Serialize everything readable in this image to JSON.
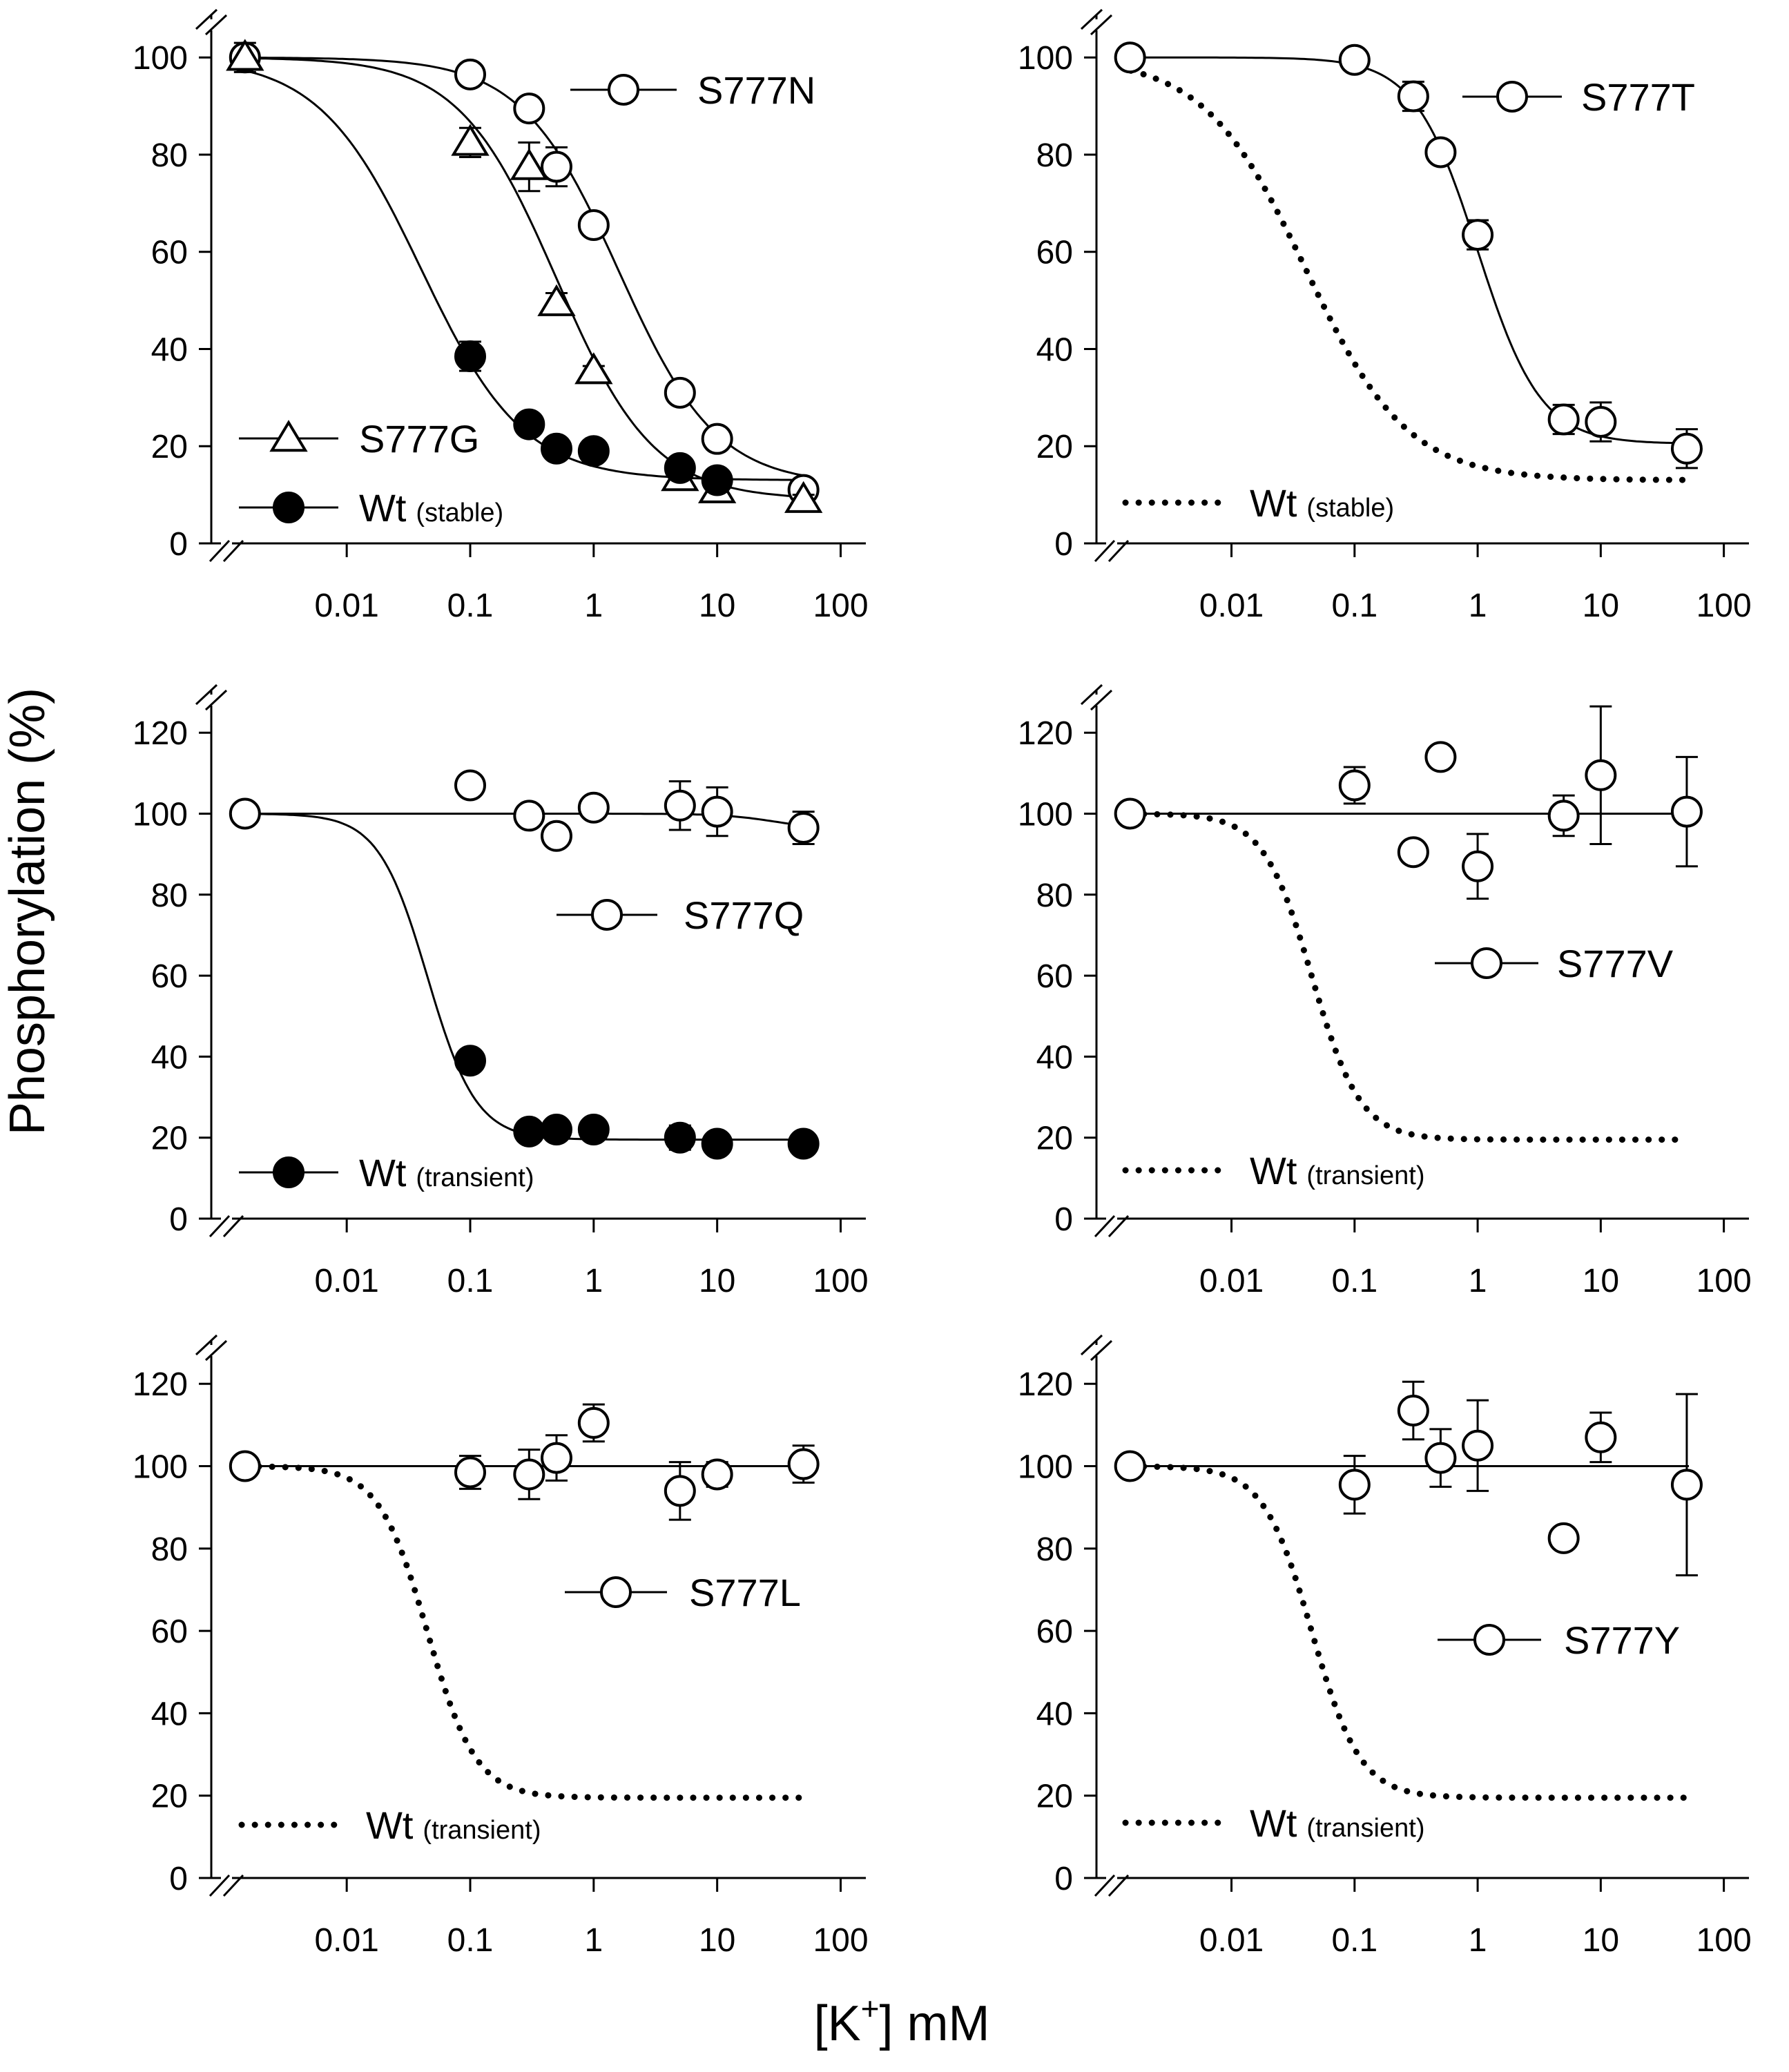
{
  "figure": {
    "ylabel": "Phosphorylation (%)",
    "xlabel_prefix": "[K",
    "xlabel_sup": "+",
    "xlabel_suffix": "] mM"
  },
  "colors": {
    "line": "#000000",
    "open_marker_fill": "#ffffff",
    "filled_marker": "#000000",
    "background": "#ffffff"
  },
  "chart_data": [
    {
      "type": "scatter",
      "panel": "top-left",
      "x_scale": "log",
      "x_ticks": [
        "0.01",
        "0.1",
        "1",
        "10",
        "100"
      ],
      "x_tick_values": [
        0.01,
        0.1,
        1,
        10,
        100
      ],
      "xlim": [
        0.0008,
        160
      ],
      "ylim": [
        0,
        100
      ],
      "y_ticks": [
        "0",
        "20",
        "40",
        "60",
        "80",
        "100"
      ],
      "y_tick_values": [
        0,
        20,
        40,
        60,
        80,
        100
      ],
      "series": [
        {
          "name": "S777N",
          "marker": "open-circle",
          "x": [
            0.0015,
            0.1,
            0.3,
            0.5,
            1,
            5,
            10,
            50
          ],
          "y": [
            100,
            96.5,
            89.5,
            77.5,
            65.5,
            31,
            21.5,
            11
          ],
          "err": [
            2,
            1,
            2,
            4,
            2,
            2,
            2,
            2
          ],
          "fit": {
            "kind": "sigmoid",
            "top": 100,
            "bottom": 12,
            "ec50": 1.6,
            "n": 1.1
          }
        },
        {
          "name": "S777G",
          "marker": "open-triangle",
          "x": [
            0.0015,
            0.1,
            0.3,
            0.5,
            1,
            5,
            10,
            50
          ],
          "y": [
            100,
            82.5,
            77.5,
            49.5,
            35.5,
            13.5,
            11,
            9
          ],
          "err": [
            3,
            3,
            5,
            2,
            1,
            1,
            1,
            1
          ],
          "fit": {
            "kind": "sigmoid",
            "top": 100,
            "bottom": 9,
            "ec50": 0.5,
            "n": 1.1
          }
        },
        {
          "name": "Wt",
          "qualifier": "(stable)",
          "marker": "filled-circle",
          "x": [
            0.1,
            0.3,
            0.5,
            1,
            5,
            10
          ],
          "y": [
            38.5,
            24.5,
            19.5,
            19,
            15.5,
            13
          ],
          "err": [
            3,
            2,
            2,
            2,
            2,
            1
          ],
          "fit": {
            "kind": "sigmoid",
            "top": 100,
            "bottom": 13,
            "ec50": 0.04,
            "n": 1.05
          }
        }
      ],
      "legend": [
        {
          "label": "S777N",
          "qualifier": "",
          "symbol": "open-circle"
        },
        {
          "label": "S777G",
          "qualifier": "",
          "symbol": "open-triangle"
        },
        {
          "label": "Wt",
          "qualifier": "(stable)",
          "symbol": "filled-circle"
        }
      ]
    },
    {
      "type": "scatter",
      "panel": "top-right",
      "x_scale": "log",
      "x_ticks": [
        "0.01",
        "0.1",
        "1",
        "10",
        "100"
      ],
      "x_tick_values": [
        0.01,
        0.1,
        1,
        10,
        100
      ],
      "xlim": [
        0.0008,
        160
      ],
      "ylim": [
        0,
        100
      ],
      "y_ticks": [
        "0",
        "20",
        "40",
        "60",
        "80",
        "100"
      ],
      "y_tick_values": [
        0,
        20,
        40,
        60,
        80,
        100
      ],
      "series": [
        {
          "name": "S777T",
          "marker": "open-circle",
          "x": [
            0.0015,
            0.1,
            0.3,
            0.5,
            1,
            5,
            10,
            50
          ],
          "y": [
            100,
            99.5,
            92,
            80.5,
            63.5,
            25.5,
            25,
            19.5
          ],
          "err": [
            2,
            1,
            3,
            2,
            3,
            3,
            4,
            4
          ],
          "fit": {
            "kind": "sigmoid",
            "top": 100,
            "bottom": 20.5,
            "ec50": 1.0,
            "n": 1.7
          }
        },
        {
          "name": "Wt",
          "qualifier": "(stable)",
          "marker": "none",
          "line_style": "dotted",
          "x": [],
          "y": [],
          "err": [],
          "fit": {
            "kind": "sigmoid",
            "top": 100,
            "bottom": 13,
            "ec50": 0.04,
            "n": 1.05
          }
        }
      ],
      "legend": [
        {
          "label": "S777T",
          "qualifier": "",
          "symbol": "open-circle"
        },
        {
          "label": "Wt",
          "qualifier": "(stable)",
          "symbol": "dotted"
        }
      ]
    },
    {
      "type": "scatter",
      "panel": "middle-left",
      "x_scale": "log",
      "x_ticks": [
        "0.01",
        "0.1",
        "1",
        "10",
        "100"
      ],
      "x_tick_values": [
        0.01,
        0.1,
        1,
        10,
        100
      ],
      "xlim": [
        0.0008,
        160
      ],
      "ylim": [
        0,
        120
      ],
      "y_ticks": [
        "0",
        "20",
        "40",
        "60",
        "80",
        "100",
        "120"
      ],
      "y_tick_values": [
        0,
        20,
        40,
        60,
        80,
        100,
        120
      ],
      "series": [
        {
          "name": "S777Q",
          "marker": "open-circle",
          "x": [
            0.0015,
            0.1,
            0.3,
            0.5,
            1,
            5,
            10,
            50
          ],
          "y": [
            100,
            107,
            99.5,
            94.5,
            101.5,
            102,
            100.5,
            96.5
          ],
          "err": [
            0,
            0,
            2,
            2,
            2,
            6,
            6,
            4
          ],
          "fit": {
            "kind": "sigmoid",
            "top": 100,
            "bottom": 96,
            "ec50": 30,
            "n": 2
          }
        },
        {
          "name": "Wt",
          "qualifier": "(transient)",
          "marker": "filled-circle",
          "x": [
            0.1,
            0.3,
            0.5,
            1,
            5,
            10,
            50
          ],
          "y": [
            39,
            21.5,
            22,
            22,
            20,
            18.5,
            18.5
          ],
          "err": [
            2,
            2,
            2,
            2,
            3,
            2,
            2
          ],
          "fit": {
            "kind": "sigmoid",
            "top": 100,
            "bottom": 19.5,
            "ec50": 0.045,
            "n": 2.2
          }
        }
      ],
      "legend": [
        {
          "label": "S777Q",
          "qualifier": "",
          "symbol": "open-circle"
        },
        {
          "label": "Wt",
          "qualifier": "(transient)",
          "symbol": "filled-circle"
        }
      ]
    },
    {
      "type": "scatter",
      "panel": "middle-right",
      "x_scale": "log",
      "x_ticks": [
        "0.01",
        "0.1",
        "1",
        "10",
        "100"
      ],
      "x_tick_values": [
        0.01,
        0.1,
        1,
        10,
        100
      ],
      "xlim": [
        0.0008,
        160
      ],
      "ylim": [
        0,
        120
      ],
      "y_ticks": [
        "0",
        "20",
        "40",
        "60",
        "80",
        "100",
        "120"
      ],
      "y_tick_values": [
        0,
        20,
        40,
        60,
        80,
        100,
        120
      ],
      "series": [
        {
          "name": "S777V",
          "marker": "open-circle",
          "x": [
            0.0015,
            0.1,
            0.3,
            0.5,
            1,
            5,
            10,
            50
          ],
          "y": [
            100,
            107,
            90.5,
            114,
            87,
            99.5,
            109.5,
            100.5
          ],
          "err": [
            0,
            4.5,
            2,
            0,
            8,
            5,
            17,
            13.5
          ],
          "fit": {
            "kind": "flat",
            "level": 100
          }
        },
        {
          "name": "Wt",
          "qualifier": "(transient)",
          "marker": "none",
          "line_style": "dotted",
          "x": [],
          "y": [],
          "err": [],
          "fit": {
            "kind": "sigmoid",
            "top": 100,
            "bottom": 19.5,
            "ec50": 0.045,
            "n": 2.2
          }
        }
      ],
      "legend": [
        {
          "label": "S777V",
          "qualifier": "",
          "symbol": "open-circle"
        },
        {
          "label": "Wt",
          "qualifier": "(transient)",
          "symbol": "dotted"
        }
      ]
    },
    {
      "type": "scatter",
      "panel": "bottom-left",
      "x_scale": "log",
      "x_ticks": [
        "0.01",
        "0.1",
        "1",
        "10",
        "100"
      ],
      "x_tick_values": [
        0.01,
        0.1,
        1,
        10,
        100
      ],
      "xlim": [
        0.0008,
        160
      ],
      "ylim": [
        0,
        120
      ],
      "y_ticks": [
        "0",
        "20",
        "40",
        "60",
        "80",
        "100",
        "120"
      ],
      "y_tick_values": [
        0,
        20,
        40,
        60,
        80,
        100,
        120
      ],
      "series": [
        {
          "name": "S777L",
          "marker": "open-circle",
          "x": [
            0.0015,
            0.1,
            0.3,
            0.5,
            1,
            5,
            10,
            50
          ],
          "y": [
            100,
            98.5,
            98,
            102,
            110.5,
            94,
            98,
            100.5
          ],
          "err": [
            0,
            4,
            6,
            5.5,
            4.5,
            7,
            3,
            4.5
          ],
          "fit": {
            "kind": "flat",
            "level": 100
          }
        },
        {
          "name": "Wt",
          "qualifier": "(transient)",
          "marker": "none",
          "line_style": "dotted",
          "x": [],
          "y": [],
          "err": [],
          "fit": {
            "kind": "sigmoid",
            "top": 100,
            "bottom": 19.5,
            "ec50": 0.045,
            "n": 2.2
          }
        }
      ],
      "legend": [
        {
          "label": "S777L",
          "qualifier": "",
          "symbol": "open-circle"
        },
        {
          "label": "Wt",
          "qualifier": "(transient)",
          "symbol": "dotted"
        }
      ]
    },
    {
      "type": "scatter",
      "panel": "bottom-right",
      "x_scale": "log",
      "x_ticks": [
        "0.01",
        "0.1",
        "1",
        "10",
        "100"
      ],
      "x_tick_values": [
        0.01,
        0.1,
        1,
        10,
        100
      ],
      "xlim": [
        0.0008,
        160
      ],
      "ylim": [
        0,
        120
      ],
      "y_ticks": [
        "0",
        "20",
        "40",
        "60",
        "80",
        "100",
        "120"
      ],
      "y_tick_values": [
        0,
        20,
        40,
        60,
        80,
        100,
        120
      ],
      "series": [
        {
          "name": "S777Y",
          "marker": "open-circle",
          "x": [
            0.0015,
            0.1,
            0.3,
            0.5,
            1,
            5,
            10,
            50
          ],
          "y": [
            100,
            95.5,
            113.5,
            102,
            105,
            82.5,
            107,
            95.5
          ],
          "err": [
            0,
            7,
            7,
            7,
            11,
            0,
            6,
            22
          ],
          "fit": {
            "kind": "flat",
            "level": 100
          }
        },
        {
          "name": "Wt",
          "qualifier": "(transient)",
          "marker": "none",
          "line_style": "dotted",
          "x": [],
          "y": [],
          "err": [],
          "fit": {
            "kind": "sigmoid",
            "top": 100,
            "bottom": 19.5,
            "ec50": 0.045,
            "n": 2.2
          }
        }
      ],
      "legend": [
        {
          "label": "S777Y",
          "qualifier": "",
          "symbol": "open-circle"
        },
        {
          "label": "Wt",
          "qualifier": "(transient)",
          "symbol": "dotted"
        }
      ]
    }
  ]
}
